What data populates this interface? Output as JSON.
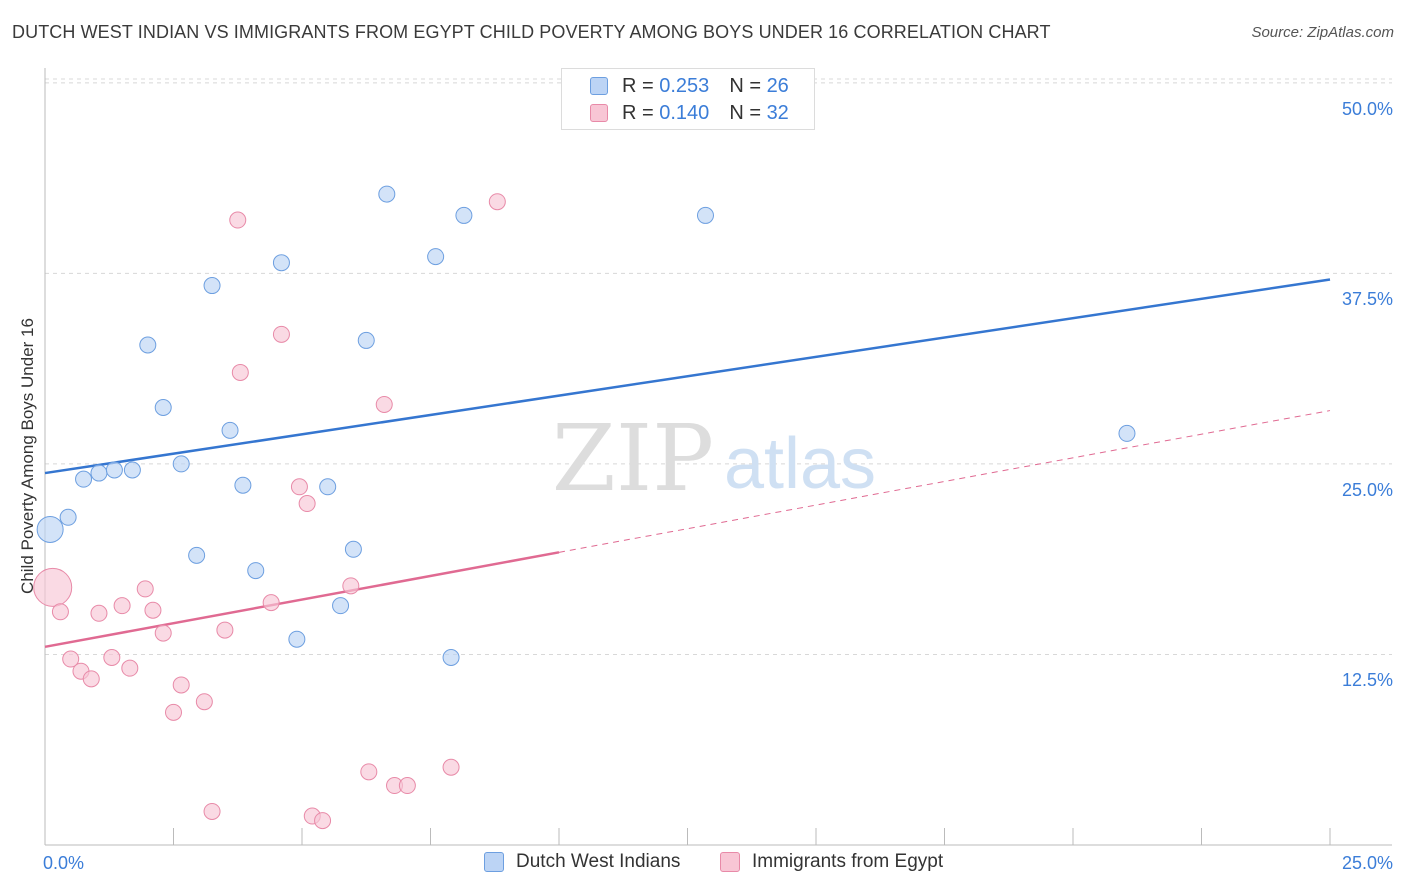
{
  "header": {
    "title": "DUTCH WEST INDIAN VS IMMIGRANTS FROM EGYPT CHILD POVERTY AMONG BOYS UNDER 16 CORRELATION CHART",
    "source": "Source: ZipAtlas.com"
  },
  "watermark": {
    "zip": "ZIP",
    "atlas": "atlas"
  },
  "legend_top": {
    "rows": [
      {
        "r_label": "R =",
        "r_value": "0.253",
        "n_label": "N =",
        "n_value": "26"
      },
      {
        "r_label": "R =",
        "r_value": "0.140",
        "n_label": "N =",
        "n_value": "32"
      }
    ]
  },
  "legend_bottom": {
    "items": [
      {
        "label": "Dutch West Indians"
      },
      {
        "label": "Immigrants from Egypt"
      }
    ]
  },
  "colors": {
    "blue_fill": "#bcd4f5",
    "blue_stroke": "#6d9fe0",
    "blue_line": "#3576d0",
    "pink_fill": "#f8c6d5",
    "pink_stroke": "#e88aa8",
    "pink_line": "#e06a92",
    "tick_text": "#3b7dd8",
    "grid": "#d8d8d8"
  },
  "chart_data": {
    "type": "scatter",
    "title": "DUTCH WEST INDIAN VS IMMIGRANTS FROM EGYPT CHILD POVERTY AMONG BOYS UNDER 16 CORRELATION CHART",
    "xlabel": "",
    "ylabel": "Child Poverty Among Boys Under 16",
    "xlim": [
      0,
      25
    ],
    "ylim": [
      0,
      51.3
    ],
    "x_tick_labels": [
      {
        "value": 0,
        "label": "0.0%"
      },
      {
        "value": 25,
        "label": "25.0%"
      }
    ],
    "x_minor_ticks": [
      0,
      2.5,
      5,
      7.5,
      10,
      12.5,
      15,
      17.5,
      20,
      22.5,
      25
    ],
    "y_ticks": [
      {
        "value": 12.5,
        "label": "12.5%"
      },
      {
        "value": 25,
        "label": "25.0%"
      },
      {
        "value": 37.5,
        "label": "37.5%"
      },
      {
        "value": 50,
        "label": "50.0%"
      }
    ],
    "grid": true,
    "legend_position": "top-center",
    "series": [
      {
        "name": "Dutch West Indians",
        "color": "#6d9fe0",
        "r": 0.253,
        "n": 26,
        "points": [
          {
            "x": 0.1,
            "y": 20.7,
            "big": true
          },
          {
            "x": 0.45,
            "y": 21.5
          },
          {
            "x": 0.75,
            "y": 24.0
          },
          {
            "x": 1.05,
            "y": 24.4
          },
          {
            "x": 1.35,
            "y": 24.6
          },
          {
            "x": 1.7,
            "y": 24.6
          },
          {
            "x": 2.0,
            "y": 32.8
          },
          {
            "x": 2.3,
            "y": 28.7
          },
          {
            "x": 2.65,
            "y": 25.0
          },
          {
            "x": 2.95,
            "y": 19.0
          },
          {
            "x": 3.25,
            "y": 36.7
          },
          {
            "x": 3.6,
            "y": 27.2
          },
          {
            "x": 3.85,
            "y": 23.6
          },
          {
            "x": 4.1,
            "y": 18.0
          },
          {
            "x": 4.6,
            "y": 38.2
          },
          {
            "x": 4.9,
            "y": 13.5
          },
          {
            "x": 5.5,
            "y": 23.5
          },
          {
            "x": 5.75,
            "y": 15.7
          },
          {
            "x": 6.0,
            "y": 19.4
          },
          {
            "x": 6.25,
            "y": 33.1
          },
          {
            "x": 6.65,
            "y": 42.7
          },
          {
            "x": 7.6,
            "y": 38.6
          },
          {
            "x": 7.9,
            "y": 12.3
          },
          {
            "x": 8.15,
            "y": 41.3
          },
          {
            "x": 12.85,
            "y": 41.3
          },
          {
            "x": 21.05,
            "y": 27.0
          }
        ],
        "trend": {
          "x0": 0,
          "y0": 24.4,
          "x1": 25,
          "y1": 37.1
        }
      },
      {
        "name": "Immigrants from Egypt",
        "color": "#e88aa8",
        "r": 0.14,
        "n": 32,
        "points": [
          {
            "x": 0.15,
            "y": 16.9,
            "big": true
          },
          {
            "x": 0.3,
            "y": 15.3
          },
          {
            "x": 0.5,
            "y": 12.2
          },
          {
            "x": 0.7,
            "y": 11.4
          },
          {
            "x": 0.9,
            "y": 10.9
          },
          {
            "x": 1.05,
            "y": 15.2
          },
          {
            "x": 1.3,
            "y": 12.3
          },
          {
            "x": 1.5,
            "y": 15.7
          },
          {
            "x": 1.65,
            "y": 11.6
          },
          {
            "x": 1.95,
            "y": 16.8
          },
          {
            "x": 2.1,
            "y": 15.4
          },
          {
            "x": 2.3,
            "y": 13.9
          },
          {
            "x": 2.5,
            "y": 8.7
          },
          {
            "x": 2.65,
            "y": 10.5
          },
          {
            "x": 3.1,
            "y": 9.4
          },
          {
            "x": 3.25,
            "y": 2.2
          },
          {
            "x": 3.5,
            "y": 14.1
          },
          {
            "x": 3.75,
            "y": 41.0
          },
          {
            "x": 3.8,
            "y": 31.0
          },
          {
            "x": 4.4,
            "y": 15.9
          },
          {
            "x": 4.6,
            "y": 33.5
          },
          {
            "x": 4.95,
            "y": 23.5
          },
          {
            "x": 5.1,
            "y": 22.4
          },
          {
            "x": 5.2,
            "y": 1.9
          },
          {
            "x": 5.4,
            "y": 1.6
          },
          {
            "x": 5.95,
            "y": 17.0
          },
          {
            "x": 6.3,
            "y": 4.8
          },
          {
            "x": 6.6,
            "y": 28.9
          },
          {
            "x": 6.8,
            "y": 3.9
          },
          {
            "x": 7.05,
            "y": 3.9
          },
          {
            "x": 7.9,
            "y": 5.1
          },
          {
            "x": 8.8,
            "y": 42.2
          }
        ],
        "trend_solid": {
          "x0": 0,
          "y0": 13.0,
          "x1": 10,
          "y1": 19.2
        },
        "trend_dashed": {
          "x0": 10,
          "y0": 19.2,
          "x1": 25,
          "y1": 28.5
        }
      }
    ]
  }
}
